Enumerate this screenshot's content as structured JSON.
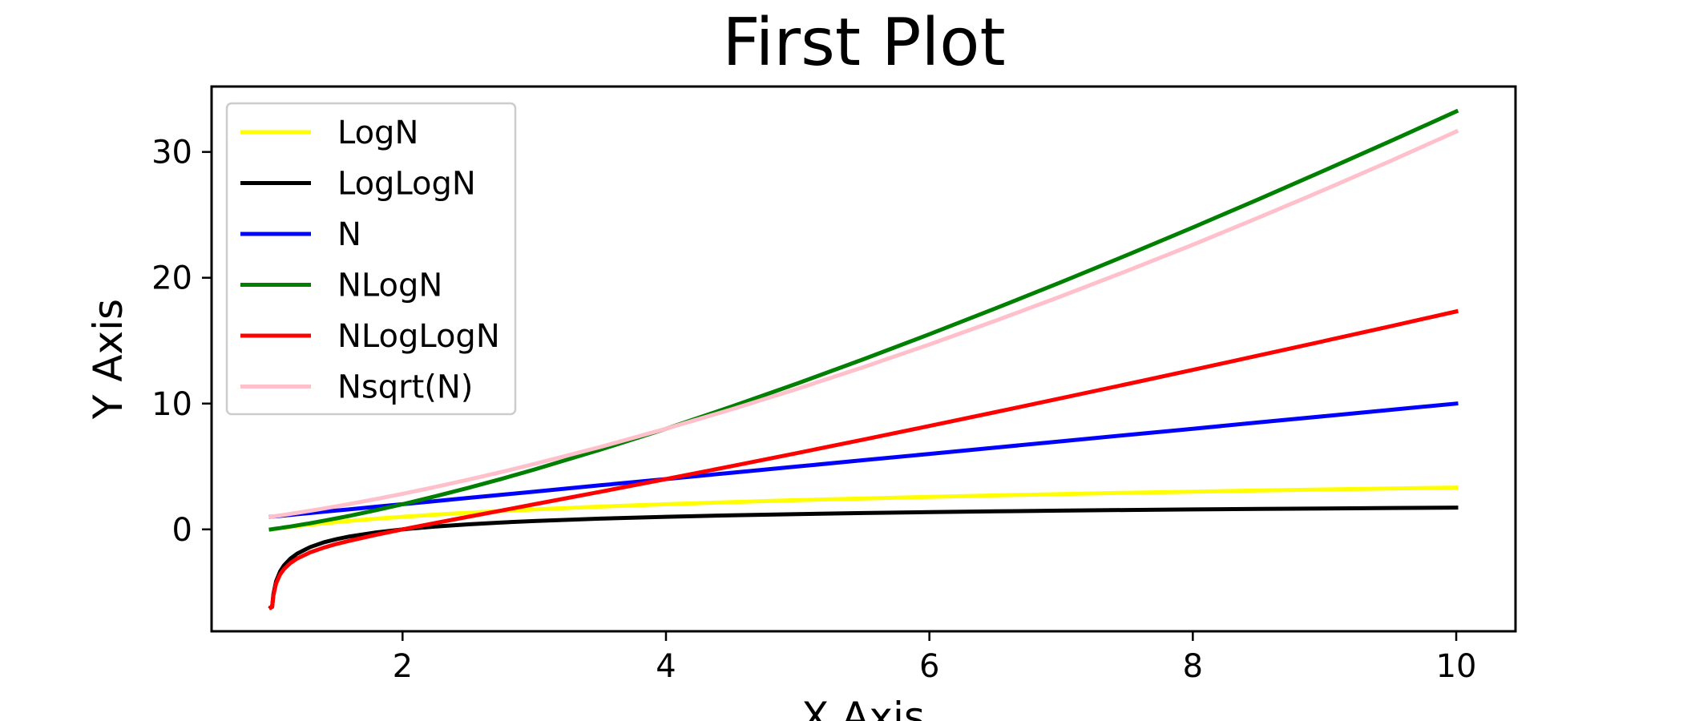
{
  "chart_data": {
    "type": "line",
    "title": "First Plot",
    "xlabel": "X Axis",
    "ylabel": "Y Axis",
    "xlim": [
      0.55,
      10.45
    ],
    "ylim": [
      -8.1,
      35.2
    ],
    "xticks": [
      2,
      4,
      6,
      8,
      10
    ],
    "yticks": [
      0,
      10,
      20,
      30
    ],
    "grid": false,
    "legend_position": "upper-left",
    "x": [
      1.0,
      1.01,
      1.02,
      1.04,
      1.07,
      1.1,
      1.15,
      1.2,
      1.3,
      1.4,
      1.5,
      1.6,
      1.8,
      2.0,
      2.25,
      2.5,
      2.75,
      3.0,
      3.5,
      4.0,
      4.5,
      5.0,
      5.5,
      6.0,
      6.5,
      7.0,
      7.5,
      8.0,
      8.5,
      9.0,
      9.5,
      10.0
    ],
    "series": [
      {
        "name": "LogN",
        "color": "#ffff00",
        "values": [
          0.0,
          0.014,
          0.029,
          0.057,
          0.098,
          0.138,
          0.202,
          0.263,
          0.379,
          0.485,
          0.585,
          0.678,
          0.848,
          1.0,
          1.17,
          1.322,
          1.459,
          1.585,
          1.807,
          2.0,
          2.17,
          2.322,
          2.459,
          2.585,
          2.7,
          2.807,
          2.907,
          3.0,
          3.087,
          3.17,
          3.248,
          3.322
        ]
      },
      {
        "name": "LogLogN",
        "color": "#000000",
        "values": [
          -6.2,
          -6.11,
          -5.13,
          -4.13,
          -3.35,
          -2.86,
          -2.31,
          -1.93,
          -1.4,
          -1.04,
          -0.77,
          -0.56,
          -0.24,
          0.0,
          0.227,
          0.403,
          0.545,
          0.664,
          0.853,
          1.0,
          1.118,
          1.215,
          1.298,
          1.37,
          1.433,
          1.489,
          1.539,
          1.585,
          1.626,
          1.664,
          1.699,
          1.732
        ]
      },
      {
        "name": "N",
        "color": "#0000ff",
        "values": [
          1.0,
          1.01,
          1.02,
          1.04,
          1.07,
          1.1,
          1.15,
          1.2,
          1.3,
          1.4,
          1.5,
          1.6,
          1.8,
          2.0,
          2.25,
          2.5,
          2.75,
          3.0,
          3.5,
          4.0,
          4.5,
          5.0,
          5.5,
          6.0,
          6.5,
          7.0,
          7.5,
          8.0,
          8.5,
          9.0,
          9.5,
          10.0
        ]
      },
      {
        "name": "NLogN",
        "color": "#008000",
        "values": [
          0.0,
          0.015,
          0.029,
          0.059,
          0.104,
          0.151,
          0.232,
          0.316,
          0.492,
          0.68,
          0.877,
          1.085,
          1.526,
          2.0,
          2.633,
          3.305,
          4.013,
          4.755,
          6.326,
          8.0,
          9.765,
          11.61,
          13.527,
          15.51,
          17.553,
          19.651,
          21.8,
          24.0,
          26.24,
          28.53,
          30.856,
          33.22
        ]
      },
      {
        "name": "NLogLogN",
        "color": "#ff0000",
        "values": [
          -6.2,
          -6.17,
          -5.23,
          -4.3,
          -3.58,
          -3.15,
          -2.66,
          -2.32,
          -1.82,
          -1.46,
          -1.15,
          -0.9,
          -0.43,
          0.0,
          0.511,
          1.008,
          1.499,
          1.991,
          2.987,
          4.0,
          5.031,
          6.075,
          7.14,
          8.22,
          9.316,
          10.423,
          11.543,
          12.68,
          13.821,
          14.976,
          16.141,
          17.32
        ]
      },
      {
        "name": "Nsqrt(N)",
        "color": "#ffc0cb",
        "values": [
          1.0,
          1.015,
          1.03,
          1.061,
          1.107,
          1.154,
          1.233,
          1.315,
          1.482,
          1.657,
          1.837,
          2.024,
          2.415,
          2.828,
          3.375,
          3.953,
          4.56,
          5.196,
          6.548,
          8.0,
          9.546,
          11.18,
          12.899,
          14.697,
          16.572,
          18.52,
          20.54,
          22.627,
          24.782,
          27.0,
          29.281,
          31.623
        ]
      }
    ]
  }
}
